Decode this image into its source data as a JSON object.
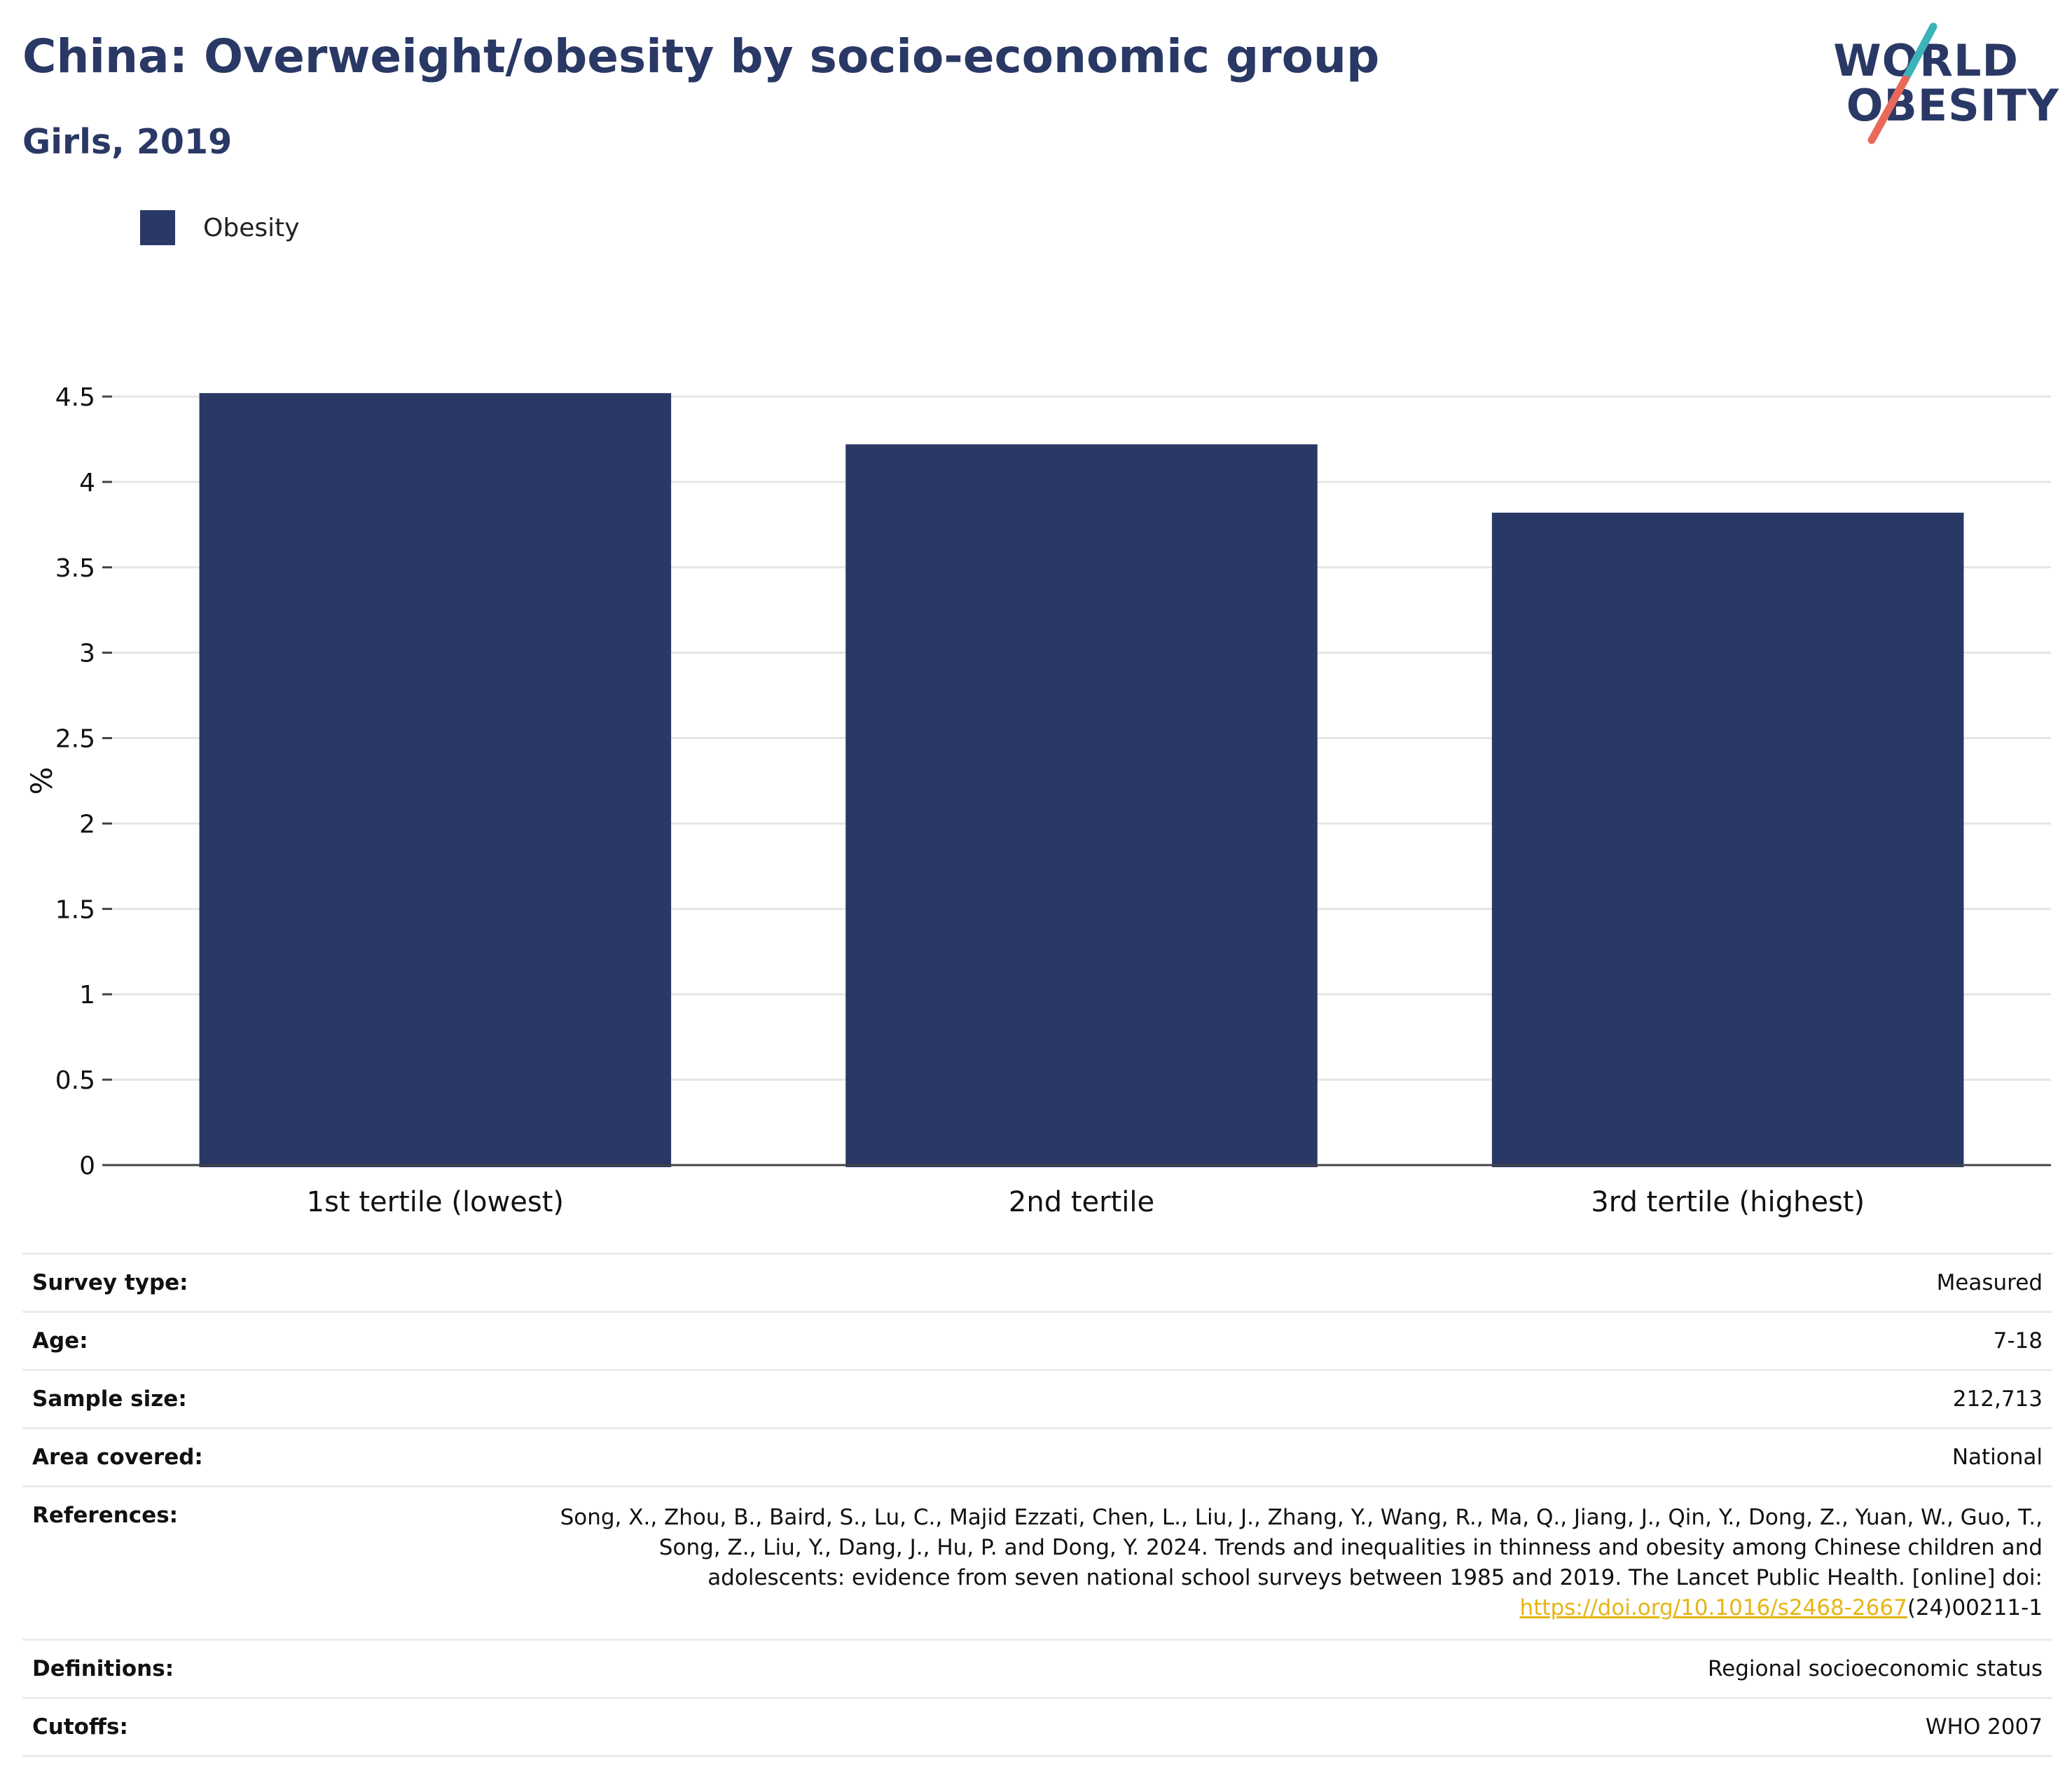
{
  "header": {
    "title": "China: Overweight/obesity by socio-economic group",
    "subtitle": "Girls, 2019"
  },
  "logo": {
    "line1": "WORLD",
    "line2": "OBESITY",
    "colors": {
      "text": "#2a3865",
      "slash_top": "#3bb3b9",
      "slash_bottom": "#e8685a"
    }
  },
  "legend": {
    "items": [
      {
        "label": "Obesity",
        "color": "#2a3865"
      }
    ]
  },
  "chart_data": {
    "type": "bar",
    "categories": [
      "1st tertile (lowest)",
      "2nd tertile",
      "3rd tertile (highest)"
    ],
    "series": [
      {
        "name": "Obesity",
        "values": [
          4.52,
          4.22,
          3.82
        ],
        "color": "#2a3865"
      }
    ],
    "ylabel": "%",
    "ylim": [
      0,
      4.5
    ],
    "yticks": [
      0,
      0.5,
      1,
      1.5,
      2,
      2.5,
      3,
      3.5,
      4,
      4.5
    ],
    "ytick_labels": [
      "0",
      "0.5",
      "1",
      "1.5",
      "2",
      "2.5",
      "3",
      "3.5",
      "4",
      "4.5"
    ],
    "grid": true,
    "legend_position": "top-left"
  },
  "info": {
    "survey_type": {
      "label": "Survey type:",
      "value": "Measured"
    },
    "age": {
      "label": "Age:",
      "value": "7-18"
    },
    "sample_size": {
      "label": "Sample size:",
      "value": "212,713"
    },
    "area": {
      "label": "Area covered:",
      "value": "National"
    },
    "references": {
      "label": "References:",
      "line1": "Song, X., Zhou, B., Baird, S., Lu, C., Majid Ezzati, Chen, L., Liu, J., Zhang, Y., Wang, R., Ma, Q., Jiang, J., Qin, Y., Dong, Z., Yuan, W., Guo, T.,",
      "line2": "Song, Z., Liu, Y., Dang, J., Hu, P. and Dong, Y. 2024. Trends and inequalities in thinness and obesity among Chinese children and",
      "line3": "adolescents: evidence from seven national school surveys between 1985 and 2019. The Lancet Public Health. [online] doi:",
      "link": "https://doi.org/10.1016/s2468-2667",
      "link_suffix": "(24)00211-1"
    },
    "definitions": {
      "label": "Definitions:",
      "value": "Regional socioeconomic status"
    },
    "cutoffs": {
      "label": "Cutoffs:",
      "value": "WHO 2007"
    }
  }
}
